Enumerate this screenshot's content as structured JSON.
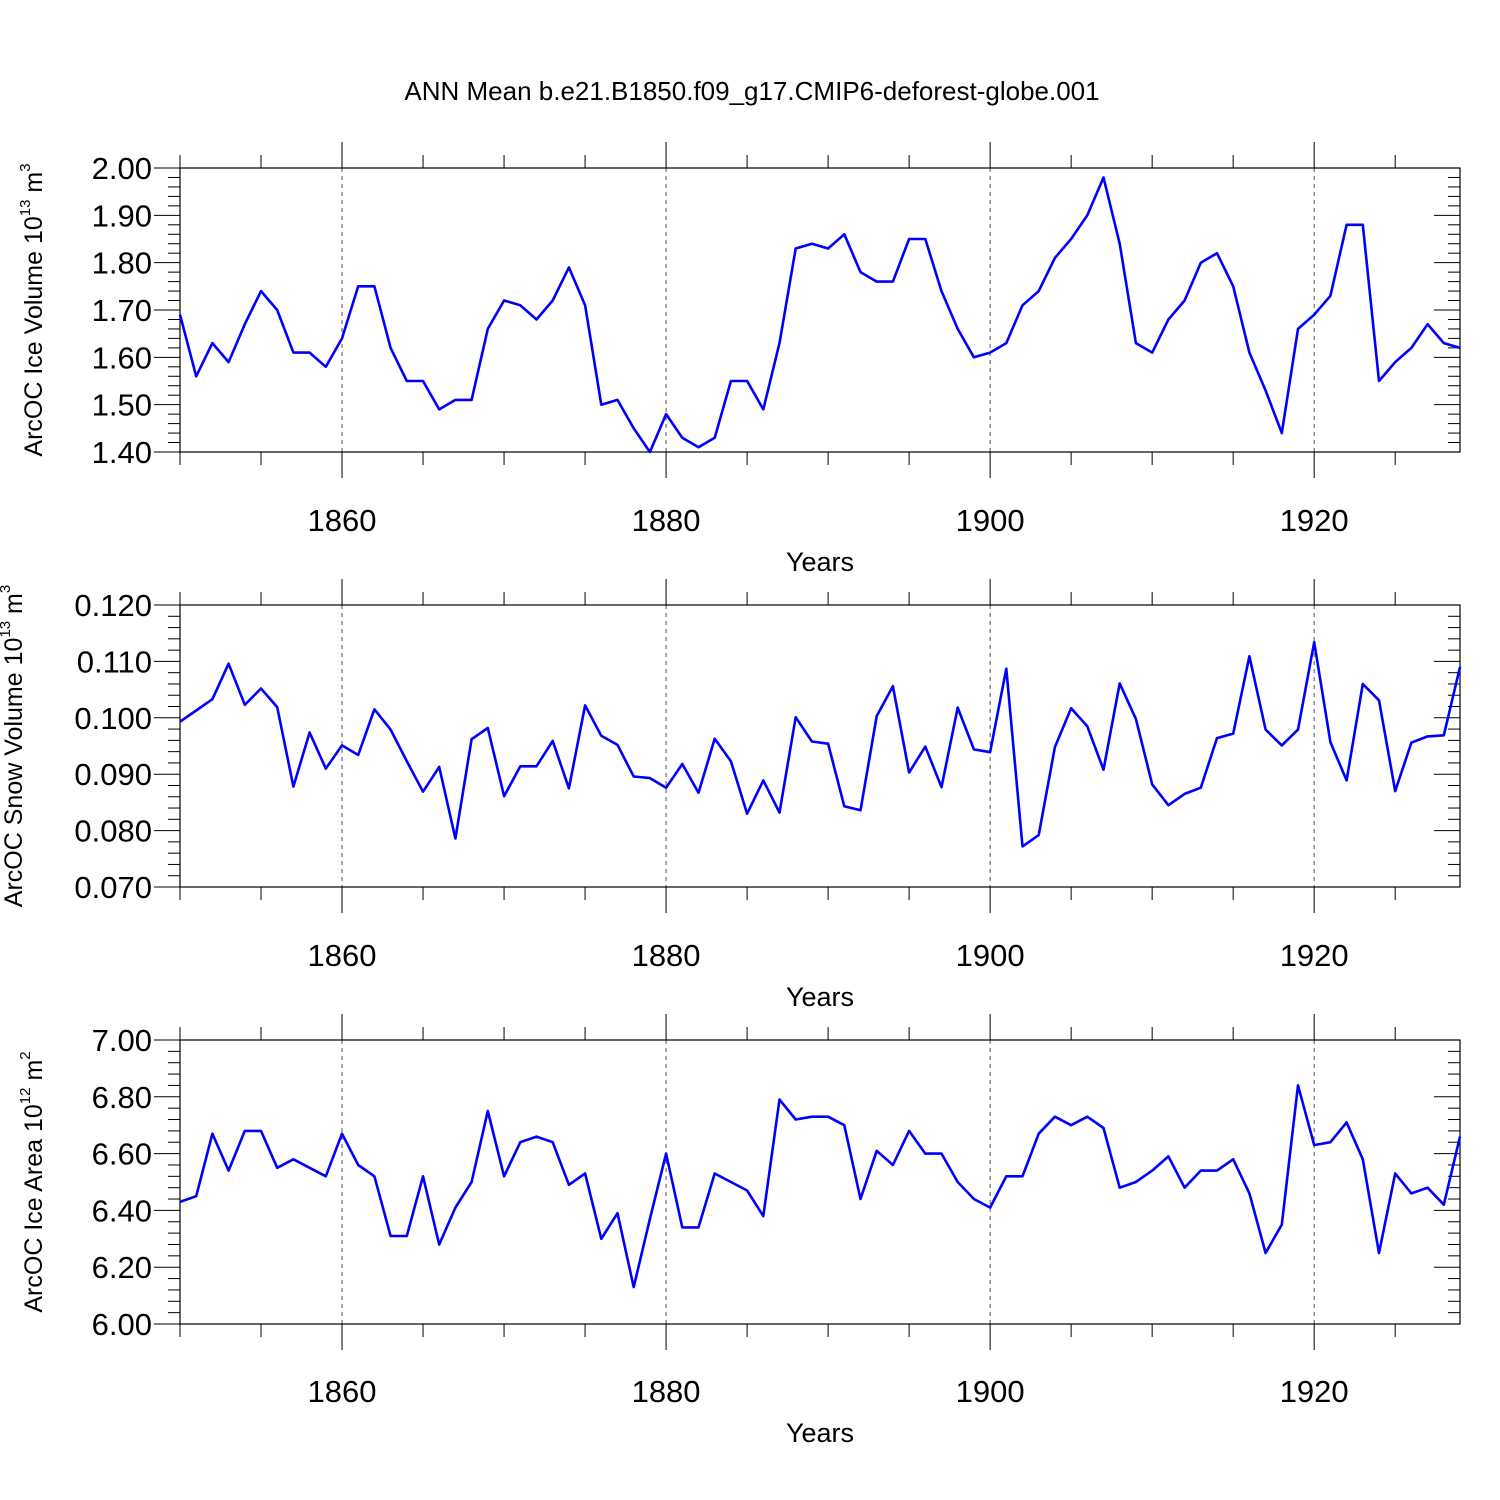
{
  "title": "ANN Mean b.e21.B1850.f09_g17.CMIP6-deforest-globe.001",
  "colors": {
    "line": "#0000ff",
    "axis": "#000000",
    "grid": "#555555"
  },
  "chart_data": [
    {
      "type": "line",
      "xlabel": "Years",
      "ylabel": {
        "text": "ArcOC Ice Volume 10",
        "exponent": "13",
        "unit": " m",
        "unit_exponent": "3"
      },
      "xlim": [
        1850,
        1929
      ],
      "ylim": [
        1.4,
        2.0
      ],
      "x_ticks": [
        1860,
        1880,
        1900,
        1920
      ],
      "x_tick_labels": [
        "1860",
        "1880",
        "1900",
        "1920"
      ],
      "y_ticks": [
        1.4,
        1.5,
        1.6,
        1.7,
        1.8,
        1.9,
        2.0
      ],
      "y_tick_labels": [
        "1.40",
        "1.50",
        "1.60",
        "1.70",
        "1.80",
        "1.90",
        "2.00"
      ],
      "x_start": 1850,
      "values": [
        1.69,
        1.56,
        1.63,
        1.59,
        1.67,
        1.74,
        1.7,
        1.61,
        1.61,
        1.58,
        1.64,
        1.75,
        1.75,
        1.62,
        1.55,
        1.55,
        1.49,
        1.51,
        1.51,
        1.66,
        1.72,
        1.71,
        1.68,
        1.72,
        1.79,
        1.71,
        1.5,
        1.51,
        1.45,
        1.4,
        1.48,
        1.43,
        1.41,
        1.43,
        1.55,
        1.55,
        1.49,
        1.63,
        1.83,
        1.84,
        1.83,
        1.86,
        1.78,
        1.76,
        1.76,
        1.85,
        1.85,
        1.74,
        1.66,
        1.6,
        1.61,
        1.63,
        1.71,
        1.74,
        1.81,
        1.85,
        1.9,
        1.98,
        1.84,
        1.63,
        1.61,
        1.68,
        1.72,
        1.8,
        1.82,
        1.75,
        1.61,
        1.53,
        1.44,
        1.66,
        1.69,
        1.73,
        1.88,
        1.88,
        1.55,
        1.59,
        1.62,
        1.67,
        1.63,
        1.62
      ]
    },
    {
      "type": "line",
      "xlabel": "Years",
      "ylabel": {
        "text": "ArcOC Snow Volume 10",
        "exponent": "13",
        "unit": " m",
        "unit_exponent": "3"
      },
      "xlim": [
        1850,
        1929
      ],
      "ylim": [
        0.07,
        0.12
      ],
      "x_ticks": [
        1860,
        1880,
        1900,
        1920
      ],
      "x_tick_labels": [
        "1860",
        "1880",
        "1900",
        "1920"
      ],
      "y_ticks": [
        0.07,
        0.08,
        0.09,
        0.1,
        0.11,
        0.12
      ],
      "y_tick_labels": [
        "0.070",
        "0.080",
        "0.090",
        "0.100",
        "0.110",
        "0.120"
      ],
      "x_start": 1850,
      "values": [
        0.0993,
        0.1013,
        0.1033,
        0.1096,
        0.1023,
        0.1052,
        0.1019,
        0.0878,
        0.0974,
        0.091,
        0.0951,
        0.0934,
        0.1015,
        0.0979,
        0.0923,
        0.0869,
        0.0913,
        0.0786,
        0.0962,
        0.0982,
        0.0861,
        0.0914,
        0.0914,
        0.0959,
        0.0875,
        0.1022,
        0.0968,
        0.0952,
        0.0896,
        0.0893,
        0.0876,
        0.0918,
        0.0867,
        0.0963,
        0.0923,
        0.083,
        0.0889,
        0.0832,
        0.1001,
        0.0958,
        0.0954,
        0.0843,
        0.0836,
        0.1003,
        0.1056,
        0.0903,
        0.0949,
        0.0877,
        0.1018,
        0.0944,
        0.0939,
        0.1087,
        0.0772,
        0.0792,
        0.0948,
        0.1017,
        0.0985,
        0.0908,
        0.1061,
        0.0998,
        0.0882,
        0.0845,
        0.0865,
        0.0876,
        0.0964,
        0.0972,
        0.1109,
        0.0979,
        0.0951,
        0.0979,
        0.1134,
        0.0957,
        0.0889,
        0.106,
        0.1031,
        0.087,
        0.0956,
        0.0967,
        0.0969,
        0.109
      ]
    },
    {
      "type": "line",
      "xlabel": "Years",
      "ylabel": {
        "text": "ArcOC Ice Area 10",
        "exponent": "12",
        "unit": " m",
        "unit_exponent": "2"
      },
      "xlim": [
        1850,
        1929
      ],
      "ylim": [
        6.0,
        7.0
      ],
      "x_ticks": [
        1860,
        1880,
        1900,
        1920
      ],
      "x_tick_labels": [
        "1860",
        "1880",
        "1900",
        "1920"
      ],
      "y_ticks": [
        6.0,
        6.2,
        6.4,
        6.6,
        6.8,
        7.0
      ],
      "y_tick_labels": [
        "6.00",
        "6.20",
        "6.40",
        "6.60",
        "6.80",
        "7.00"
      ],
      "x_start": 1850,
      "values": [
        6.43,
        6.45,
        6.67,
        6.54,
        6.68,
        6.68,
        6.55,
        6.58,
        6.55,
        6.52,
        6.67,
        6.56,
        6.52,
        6.31,
        6.31,
        6.52,
        6.28,
        6.41,
        6.5,
        6.75,
        6.52,
        6.64,
        6.66,
        6.64,
        6.49,
        6.53,
        6.3,
        6.39,
        6.13,
        6.37,
        6.6,
        6.34,
        6.34,
        6.53,
        6.5,
        6.47,
        6.38,
        6.79,
        6.72,
        6.73,
        6.73,
        6.7,
        6.44,
        6.61,
        6.56,
        6.68,
        6.6,
        6.6,
        6.5,
        6.44,
        6.41,
        6.52,
        6.52,
        6.67,
        6.73,
        6.7,
        6.73,
        6.69,
        6.48,
        6.5,
        6.54,
        6.59,
        6.48,
        6.54,
        6.54,
        6.58,
        6.46,
        6.25,
        6.35,
        6.84,
        6.63,
        6.64,
        6.71,
        6.58,
        6.25,
        6.53,
        6.46,
        6.48,
        6.42,
        6.66
      ]
    }
  ]
}
